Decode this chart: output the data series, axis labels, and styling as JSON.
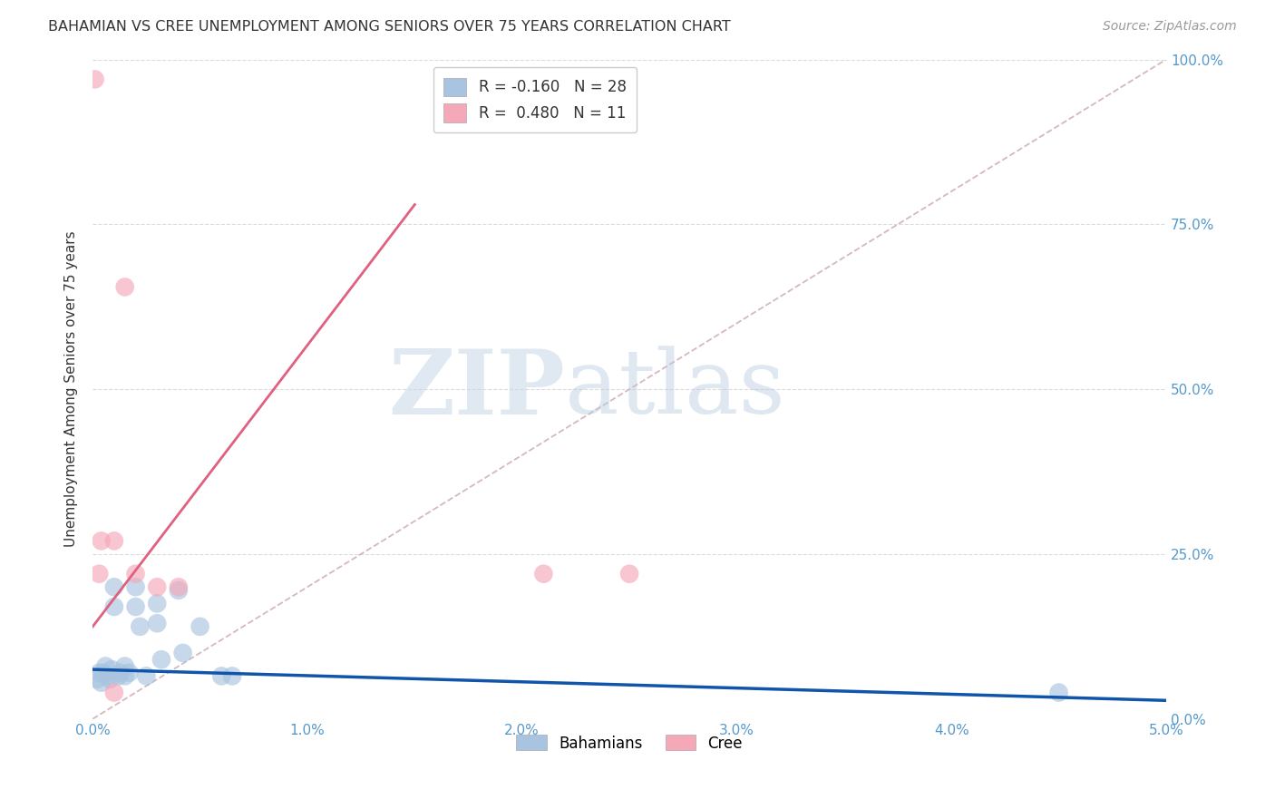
{
  "title": "BAHAMIAN VS CREE UNEMPLOYMENT AMONG SENIORS OVER 75 YEARS CORRELATION CHART",
  "source": "Source: ZipAtlas.com",
  "ylabel": "Unemployment Among Seniors over 75 years",
  "xlim": [
    0.0,
    0.05
  ],
  "ylim": [
    0.0,
    1.0
  ],
  "xticks": [
    0.0,
    0.01,
    0.02,
    0.03,
    0.04,
    0.05
  ],
  "yticks": [
    0.0,
    0.25,
    0.5,
    0.75,
    1.0
  ],
  "ytick_labels": [
    "0.0%",
    "25.0%",
    "50.0%",
    "75.0%",
    "100.0%"
  ],
  "xtick_labels": [
    "0.0%",
    "1.0%",
    "2.0%",
    "3.0%",
    "4.0%",
    "5.0%"
  ],
  "bahamian_R": -0.16,
  "bahamian_N": 28,
  "cree_R": 0.48,
  "cree_N": 11,
  "bahamian_color": "#a8c4e0",
  "cree_color": "#f4a8b8",
  "bahamian_line_color": "#1155aa",
  "cree_line_color": "#e06080",
  "diagonal_color": "#d0b0b8",
  "watermark_zip": "ZIP",
  "watermark_atlas": "atlas",
  "bahamian_x": [
    0.0002,
    0.0003,
    0.0004,
    0.0005,
    0.0006,
    0.0007,
    0.0008,
    0.0009,
    0.001,
    0.001,
    0.0012,
    0.0013,
    0.0015,
    0.0015,
    0.0017,
    0.002,
    0.002,
    0.0022,
    0.0025,
    0.003,
    0.003,
    0.0032,
    0.004,
    0.0042,
    0.005,
    0.006,
    0.0065,
    0.045
  ],
  "bahamian_y": [
    0.06,
    0.07,
    0.055,
    0.07,
    0.08,
    0.065,
    0.06,
    0.075,
    0.2,
    0.17,
    0.065,
    0.07,
    0.08,
    0.065,
    0.07,
    0.17,
    0.2,
    0.14,
    0.065,
    0.145,
    0.175,
    0.09,
    0.195,
    0.1,
    0.14,
    0.065,
    0.065,
    0.04
  ],
  "cree_x": [
    0.0001,
    0.0003,
    0.0004,
    0.001,
    0.001,
    0.0015,
    0.002,
    0.003,
    0.004,
    0.021,
    0.025
  ],
  "cree_y": [
    0.97,
    0.22,
    0.27,
    0.27,
    0.04,
    0.655,
    0.22,
    0.2,
    0.2,
    0.22,
    0.22
  ],
  "bahamian_line_x": [
    0.0,
    0.05
  ],
  "bahamian_line_y": [
    0.075,
    0.028
  ],
  "cree_line_x": [
    0.0,
    0.015
  ],
  "cree_line_y": [
    0.14,
    0.78
  ]
}
